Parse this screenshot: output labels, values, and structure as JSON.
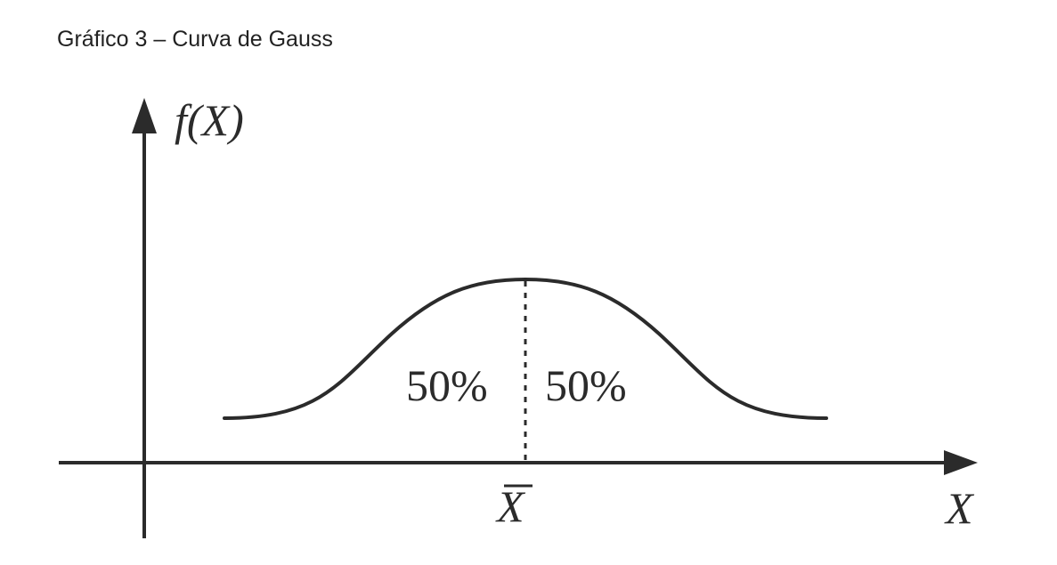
{
  "figure": {
    "caption": "Gráfico 3 – Curva de Gauss",
    "y_axis_label": "f(X)",
    "x_axis_label": "X",
    "mean_label": "X",
    "left_area_label": "50%",
    "right_area_label": "50%",
    "stroke_color": "#2b2b2b"
  }
}
